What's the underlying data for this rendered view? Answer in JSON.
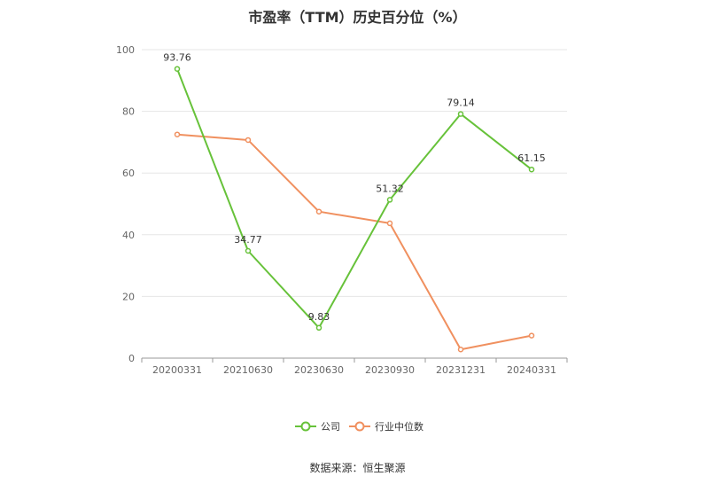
{
  "chart_data": {
    "type": "line",
    "title": "市盈率（TTM）历史百分位（%）",
    "categories": [
      "20200331",
      "20210630",
      "20230630",
      "20230930",
      "20231231",
      "20240331"
    ],
    "ylim": [
      0,
      100
    ],
    "yticks": [
      0,
      20,
      40,
      60,
      80,
      100
    ],
    "grid": true,
    "legend_position": "bottom",
    "series": [
      {
        "name": "公司",
        "color": "#67c23a",
        "values": [
          93.76,
          34.77,
          9.83,
          51.32,
          79.14,
          61.15
        ],
        "labels": [
          "93.76",
          "34.77",
          "9.83",
          "51.32",
          "79.14",
          "61.15"
        ]
      },
      {
        "name": "行业中位数",
        "color": "#f0905f",
        "values": [
          72.5,
          70.7,
          47.5,
          43.7,
          2.8,
          7.3
        ],
        "labels": null
      }
    ]
  },
  "source": "数据来源：恒生聚源"
}
